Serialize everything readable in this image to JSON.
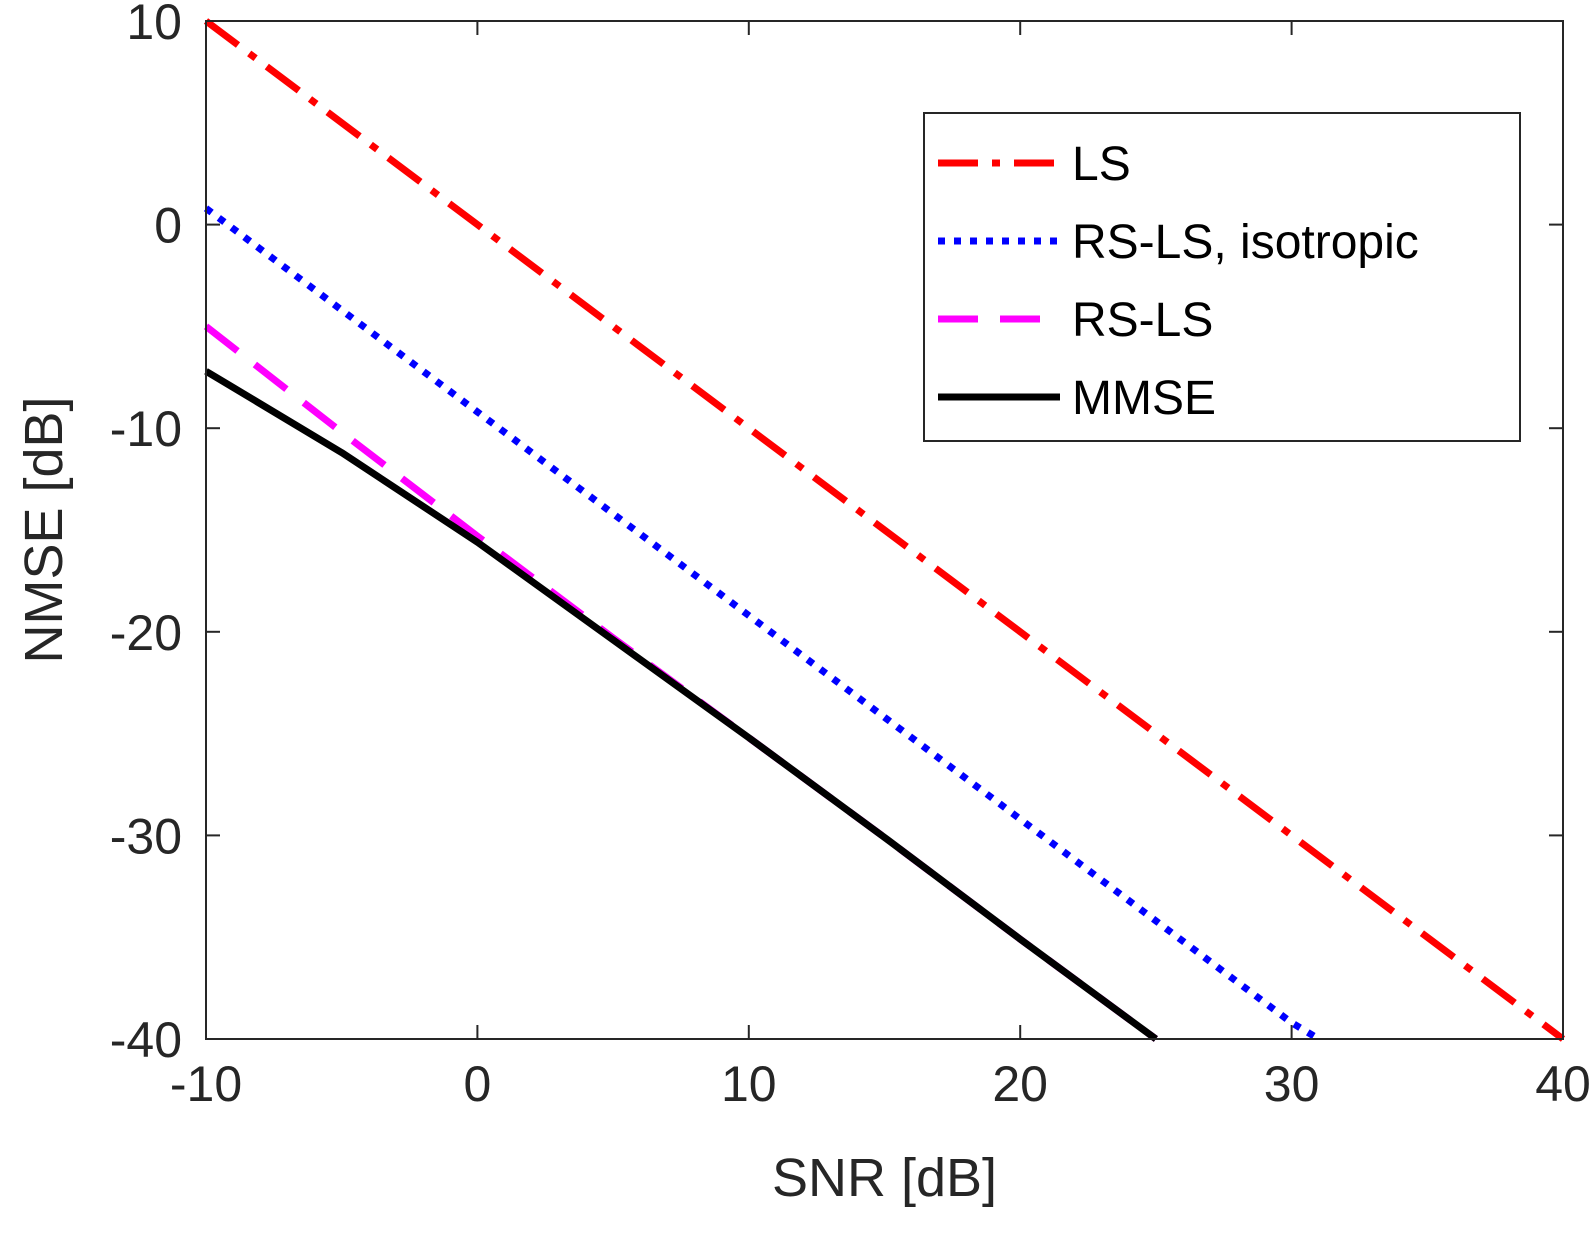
{
  "chart_data": {
    "type": "line",
    "title": "",
    "xlabel": "SNR [dB]",
    "ylabel": "NMSE [dB]",
    "xlim": [
      -10,
      40
    ],
    "ylim": [
      -40,
      10
    ],
    "xticks": [
      -10,
      0,
      10,
      20,
      30,
      40
    ],
    "yticks": [
      -40,
      -30,
      -20,
      -10,
      0,
      10
    ],
    "xtick_labels": [
      "-10",
      "0",
      "10",
      "20",
      "30",
      "40"
    ],
    "ytick_labels": [
      "-40",
      "-30",
      "-20",
      "-10",
      "0",
      "10"
    ],
    "grid": false,
    "legend_position": "top-right",
    "series": [
      {
        "name": "LS",
        "color": "#ff0000",
        "style": "dashdot",
        "x": [
          -10,
          0,
          10,
          20,
          30,
          40
        ],
        "y": [
          10,
          0,
          -10,
          -20,
          -30,
          -40
        ]
      },
      {
        "name": "RS-LS, isotropic",
        "color": "#0000ff",
        "style": "dotted",
        "x": [
          -10,
          0,
          10,
          20,
          30,
          31
        ],
        "y": [
          0.8,
          -9.2,
          -19.2,
          -29.2,
          -39.2,
          -40
        ]
      },
      {
        "name": "RS-LS",
        "color": "#ff00ff",
        "style": "dashed",
        "x": [
          -10,
          -5,
          0,
          5,
          10,
          15,
          20,
          25
        ],
        "y": [
          -5,
          -10.2,
          -15.3,
          -20.3,
          -25.2,
          -30.1,
          -35.1,
          -40
        ]
      },
      {
        "name": "MMSE",
        "color": "#000000",
        "style": "solid",
        "x": [
          -10,
          -5,
          0,
          5,
          10,
          15,
          20,
          25
        ],
        "y": [
          -7.2,
          -11.2,
          -15.6,
          -20.4,
          -25.2,
          -30.1,
          -35.1,
          -40
        ]
      }
    ]
  }
}
